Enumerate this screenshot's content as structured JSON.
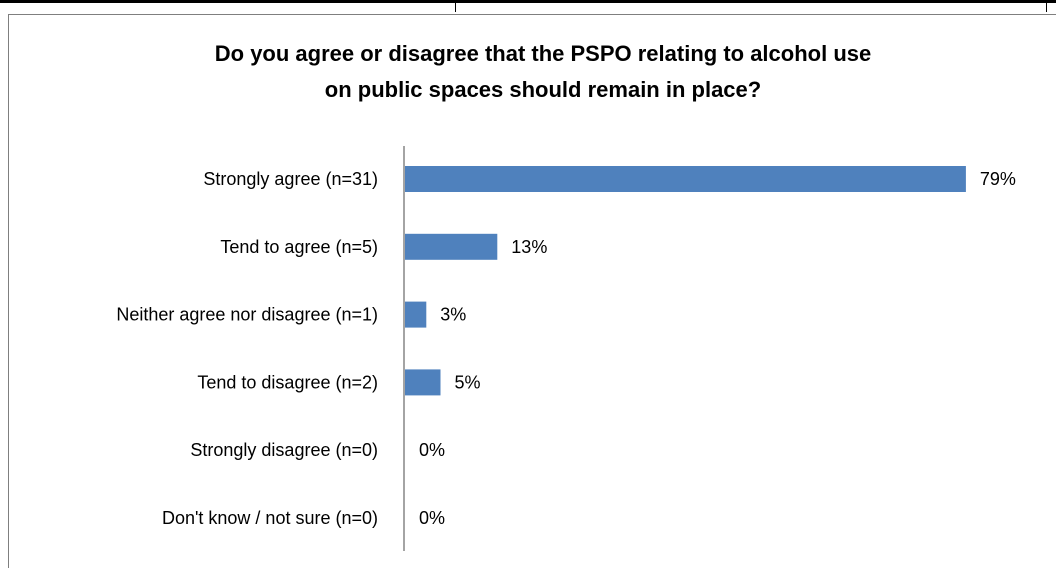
{
  "chart_data": {
    "type": "bar",
    "orientation": "horizontal",
    "title": "Do you agree or disagree that the PSPO relating to alcohol use on public spaces should remain in place?",
    "title_lines": [
      "Do you agree or disagree that the PSPO relating to alcohol use",
      "on public spaces should remain in place?"
    ],
    "categories": [
      "Strongly agree (n=31)",
      "Tend to agree (n=5)",
      "Neither agree nor disagree (n=1)",
      "Tend to disagree (n=2)",
      "Strongly disagree (n=0)",
      "Don't know / not sure (n=0)"
    ],
    "values": [
      79,
      13,
      3,
      5,
      0,
      0
    ],
    "value_labels": [
      "79%",
      "13%",
      "3%",
      "5%",
      "0%",
      "0%"
    ],
    "unit": "%",
    "xlim": [
      0,
      80
    ],
    "bar_color": "#4f81bd",
    "grid": false,
    "legend": "none"
  }
}
